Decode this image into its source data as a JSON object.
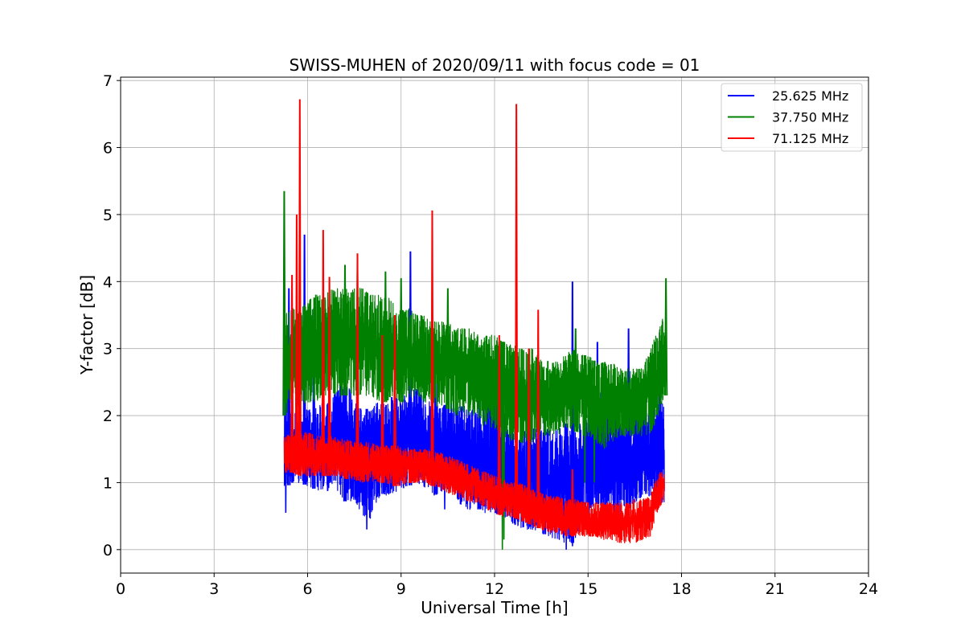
{
  "chart_data": {
    "type": "line",
    "title": "SWISS-MUHEN of 2020/09/11 with focus code = 01",
    "xlabel": "Universal Time [h]",
    "ylabel": "Y-factor [dB]",
    "xlim": [
      0,
      24
    ],
    "ylim": [
      -0.35,
      7.05
    ],
    "xticks": [
      0,
      3,
      6,
      9,
      12,
      15,
      18,
      21,
      24
    ],
    "yticks": [
      0,
      1,
      2,
      3,
      4,
      5,
      6,
      7
    ],
    "grid": true,
    "legend_position": "top-right",
    "series": [
      {
        "name": "25.625 MHz",
        "color": "#0000ff",
        "x": [
          5.25,
          5.5,
          5.75,
          6.0,
          6.25,
          6.5,
          6.75,
          7.0,
          7.25,
          7.5,
          7.75,
          8.0,
          8.25,
          8.5,
          8.75,
          9.0,
          9.25,
          9.5,
          9.75,
          10.0,
          10.25,
          10.5,
          10.75,
          11.0,
          11.25,
          11.5,
          11.75,
          12.0,
          12.25,
          12.5,
          12.75,
          13.0,
          13.25,
          13.5,
          13.75,
          14.0,
          14.25,
          14.5,
          14.75,
          15.0,
          15.25,
          15.5,
          15.75,
          16.0,
          16.25,
          16.5,
          16.75,
          17.0,
          17.25,
          17.45
        ],
        "low": [
          0.9,
          1.0,
          1.0,
          0.95,
          0.9,
          0.85,
          0.9,
          0.8,
          0.7,
          0.75,
          0.5,
          0.45,
          0.75,
          0.8,
          0.85,
          0.9,
          0.95,
          1.0,
          0.9,
          0.8,
          0.85,
          0.9,
          0.8,
          0.6,
          0.6,
          0.6,
          0.5,
          0.55,
          0.5,
          0.4,
          0.35,
          0.3,
          0.3,
          0.25,
          0.2,
          0.15,
          0.1,
          0.1,
          0.3,
          0.5,
          0.7,
          0.6,
          0.5,
          0.5,
          0.6,
          0.7,
          0.8,
          0.8,
          0.7,
          0.7
        ],
        "high": [
          2.3,
          2.2,
          2.0,
          2.1,
          2.1,
          2.2,
          2.2,
          2.5,
          2.5,
          2.3,
          2.1,
          2.1,
          2.2,
          2.2,
          2.3,
          2.2,
          2.4,
          2.4,
          2.3,
          2.3,
          2.1,
          2.2,
          2.2,
          2.2,
          2.1,
          2.0,
          2.2,
          2.2,
          2.2,
          1.8,
          1.7,
          1.8,
          1.8,
          1.8,
          1.8,
          1.8,
          1.9,
          1.8,
          1.9,
          2.0,
          2.3,
          2.5,
          2.2,
          2.0,
          2.0,
          2.0,
          2.2,
          2.0,
          2.2,
          2.2
        ],
        "spikes": [
          [
            5.4,
            3.9
          ],
          [
            5.9,
            4.7
          ],
          [
            6.2,
            3.6
          ],
          [
            7.2,
            2.9
          ],
          [
            9.3,
            4.45
          ],
          [
            10.1,
            2.8
          ],
          [
            11.5,
            2.6
          ],
          [
            12.1,
            2.7
          ],
          [
            13.6,
            2.5
          ],
          [
            14.5,
            4.0
          ],
          [
            15.3,
            3.1
          ],
          [
            16.3,
            3.3
          ],
          [
            17.3,
            3.2
          ]
        ],
        "dips": [
          [
            5.3,
            0.55
          ],
          [
            7.9,
            0.3
          ],
          [
            10.4,
            0.6
          ],
          [
            14.3,
            0.0
          ],
          [
            14.5,
            0.05
          ]
        ]
      },
      {
        "name": "37.750 MHz",
        "color": "#008000",
        "x": [
          5.25,
          5.5,
          5.75,
          6.0,
          6.25,
          6.5,
          6.75,
          7.0,
          7.25,
          7.5,
          7.75,
          8.0,
          8.25,
          8.5,
          8.75,
          9.0,
          9.25,
          9.5,
          9.75,
          10.0,
          10.25,
          10.5,
          10.75,
          11.0,
          11.25,
          11.5,
          11.75,
          12.0,
          12.25,
          12.5,
          12.75,
          13.0,
          13.25,
          13.5,
          13.75,
          14.0,
          14.25,
          14.5,
          14.75,
          15.0,
          15.25,
          15.5,
          15.75,
          16.0,
          16.25,
          16.5,
          16.75,
          17.0,
          17.25,
          17.45
        ],
        "low": [
          2.0,
          2.1,
          2.1,
          2.2,
          2.2,
          2.3,
          2.3,
          2.3,
          2.3,
          2.3,
          2.3,
          2.3,
          2.2,
          2.2,
          2.3,
          2.2,
          2.2,
          2.3,
          2.2,
          2.2,
          2.1,
          2.1,
          2.0,
          2.0,
          2.0,
          1.9,
          1.8,
          1.8,
          1.7,
          1.6,
          1.6,
          1.6,
          1.6,
          1.7,
          1.7,
          1.7,
          1.8,
          1.8,
          1.7,
          1.7,
          1.6,
          1.5,
          1.6,
          1.7,
          1.7,
          1.7,
          1.7,
          1.7,
          2.0,
          2.3
        ],
        "high": [
          3.5,
          3.6,
          3.6,
          3.7,
          3.8,
          3.8,
          3.9,
          3.9,
          3.9,
          3.9,
          3.9,
          3.8,
          3.8,
          3.8,
          3.7,
          3.6,
          3.6,
          3.5,
          3.5,
          3.4,
          3.4,
          3.4,
          3.3,
          3.3,
          3.3,
          3.2,
          3.2,
          3.2,
          3.1,
          3.1,
          3.0,
          3.0,
          3.0,
          2.9,
          2.8,
          2.8,
          2.9,
          3.0,
          2.9,
          2.9,
          2.8,
          2.8,
          2.8,
          2.7,
          2.7,
          2.7,
          2.7,
          3.0,
          3.3,
          3.5
        ],
        "spikes": [
          [
            5.25,
            5.35
          ],
          [
            7.2,
            4.25
          ],
          [
            7.6,
            4.2
          ],
          [
            8.5,
            4.15
          ],
          [
            9.0,
            4.05
          ],
          [
            10.5,
            3.9
          ],
          [
            14.6,
            3.3
          ],
          [
            17.5,
            4.05
          ]
        ],
        "dips": [
          [
            12.25,
            0.0
          ],
          [
            12.3,
            0.15
          ],
          [
            14.9,
            1.0
          ],
          [
            15.2,
            1.0
          ]
        ]
      },
      {
        "name": "71.125 MHz",
        "color": "#ff0000",
        "x": [
          5.25,
          5.5,
          5.75,
          6.0,
          6.25,
          6.5,
          6.75,
          7.0,
          7.25,
          7.5,
          7.75,
          8.0,
          8.25,
          8.5,
          8.75,
          9.0,
          9.25,
          9.5,
          9.75,
          10.0,
          10.25,
          10.5,
          10.75,
          11.0,
          11.25,
          11.5,
          11.75,
          12.0,
          12.25,
          12.5,
          12.75,
          13.0,
          13.25,
          13.5,
          13.75,
          14.0,
          14.25,
          14.5,
          14.75,
          15.0,
          15.25,
          15.5,
          15.75,
          16.0,
          16.25,
          16.5,
          16.75,
          17.0,
          17.25,
          17.45
        ],
        "low": [
          1.15,
          1.15,
          1.1,
          1.1,
          1.1,
          1.1,
          1.1,
          1.1,
          1.05,
          1.05,
          1.0,
          1.0,
          1.0,
          1.0,
          0.95,
          0.95,
          1.0,
          1.0,
          1.0,
          0.95,
          0.9,
          0.85,
          0.8,
          0.75,
          0.7,
          0.7,
          0.6,
          0.55,
          0.5,
          0.5,
          0.45,
          0.4,
          0.35,
          0.3,
          0.25,
          0.25,
          0.2,
          0.2,
          0.2,
          0.2,
          0.2,
          0.15,
          0.15,
          0.1,
          0.1,
          0.1,
          0.15,
          0.2,
          0.6,
          0.75
        ],
        "high": [
          1.75,
          1.7,
          1.75,
          1.75,
          1.7,
          1.7,
          1.7,
          1.65,
          1.65,
          1.6,
          1.6,
          1.6,
          1.55,
          1.55,
          1.55,
          1.55,
          1.5,
          1.5,
          1.5,
          1.45,
          1.45,
          1.4,
          1.35,
          1.3,
          1.25,
          1.2,
          1.15,
          1.1,
          1.05,
          1.0,
          1.0,
          0.95,
          0.9,
          0.85,
          0.8,
          0.8,
          0.75,
          0.75,
          0.75,
          0.7,
          0.7,
          0.7,
          0.7,
          0.7,
          0.7,
          0.75,
          0.75,
          0.8,
          1.15,
          1.15
        ],
        "spikes": [
          [
            5.5,
            4.1
          ],
          [
            5.65,
            5.0
          ],
          [
            5.75,
            6.72
          ],
          [
            6.5,
            4.77
          ],
          [
            6.7,
            4.07
          ],
          [
            7.6,
            4.42
          ],
          [
            8.4,
            3.2
          ],
          [
            8.8,
            3.5
          ],
          [
            10.0,
            5.06
          ],
          [
            12.15,
            3.2
          ],
          [
            12.7,
            6.65
          ],
          [
            13.1,
            3.0
          ],
          [
            13.4,
            3.58
          ],
          [
            14.5,
            1.2
          ]
        ],
        "dips": []
      }
    ]
  }
}
